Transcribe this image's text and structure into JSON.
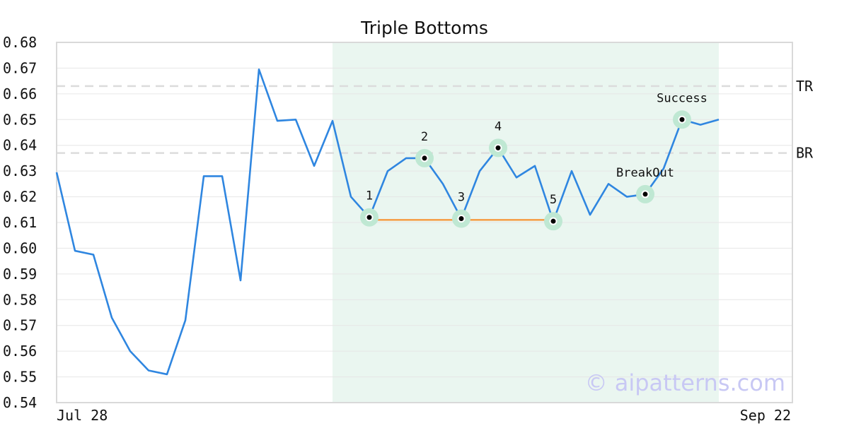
{
  "chart_data": {
    "type": "line",
    "title": "Triple Bottoms",
    "ylim": [
      0.54,
      0.68
    ],
    "y_ticks": [
      "0.68",
      "0.67",
      "0.66",
      "0.65",
      "0.64",
      "0.63",
      "0.62",
      "0.61",
      "0.60",
      "0.59",
      "0.58",
      "0.57",
      "0.56",
      "0.55",
      "0.54"
    ],
    "y_tick_values": [
      0.68,
      0.67,
      0.66,
      0.65,
      0.64,
      0.63,
      0.62,
      0.61,
      0.6,
      0.59,
      0.58,
      0.57,
      0.56,
      0.55,
      0.54
    ],
    "x_tick_labels": {
      "start": "Jul 28",
      "end": "Sep 22"
    },
    "x_count": 41,
    "grid": true,
    "series": [
      {
        "color": "#2f86e0",
        "values": [
          0.6295,
          0.599,
          0.5975,
          0.573,
          0.56,
          0.5525,
          0.551,
          0.572,
          0.628,
          0.628,
          0.5875,
          0.6695,
          0.6495,
          0.65,
          0.632,
          0.6495,
          0.62,
          0.612,
          0.63,
          0.635,
          0.635,
          0.625,
          0.6115,
          0.63,
          0.639,
          0.6275,
          0.632,
          0.6105,
          0.63,
          0.613,
          0.625,
          0.62,
          0.621,
          0.631,
          0.65,
          0.648,
          0.65
        ]
      }
    ],
    "reference_lines": [
      {
        "label": "TR",
        "y": 0.663
      },
      {
        "label": "BR",
        "y": 0.637
      }
    ],
    "highlight_region": {
      "x_start": 15,
      "x_end": 36,
      "color": "#eaf6f0"
    },
    "support_line": {
      "x_start": 17,
      "x_end": 27,
      "y": 0.611,
      "color": "#f5a04a"
    },
    "markers": [
      {
        "label": "1",
        "x": 17,
        "y": 0.612
      },
      {
        "label": "2",
        "x": 20,
        "y": 0.635
      },
      {
        "label": "3",
        "x": 22,
        "y": 0.6115
      },
      {
        "label": "4",
        "x": 24,
        "y": 0.639
      },
      {
        "label": "5",
        "x": 27,
        "y": 0.6105
      },
      {
        "label": "BreakOut",
        "x": 32,
        "y": 0.621
      },
      {
        "label": "Success",
        "x": 34,
        "y": 0.65
      }
    ],
    "watermark": "© aipatterns.com"
  }
}
